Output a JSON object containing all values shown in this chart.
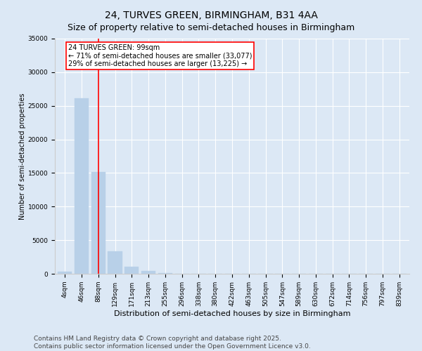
{
  "title": "24, TURVES GREEN, BIRMINGHAM, B31 4AA",
  "subtitle": "Size of property relative to semi-detached houses in Birmingham",
  "xlabel": "Distribution of semi-detached houses by size in Birmingham",
  "ylabel": "Number of semi-detached properties",
  "categories": [
    "4sqm",
    "46sqm",
    "88sqm",
    "129sqm",
    "171sqm",
    "213sqm",
    "255sqm",
    "296sqm",
    "338sqm",
    "380sqm",
    "422sqm",
    "463sqm",
    "505sqm",
    "547sqm",
    "589sqm",
    "630sqm",
    "672sqm",
    "714sqm",
    "756sqm",
    "797sqm",
    "839sqm"
  ],
  "values": [
    350,
    26100,
    15100,
    3300,
    1050,
    450,
    150,
    30,
    10,
    5,
    3,
    2,
    1,
    0,
    0,
    0,
    0,
    0,
    0,
    0,
    0
  ],
  "bar_color": "#b8d0e8",
  "bar_edge_color": "#b8d0e8",
  "vline_x_index": 2,
  "vline_color": "red",
  "annotation_title": "24 TURVES GREEN: 99sqm",
  "annotation_line1": "← 71% of semi-detached houses are smaller (33,077)",
  "annotation_line2": "29% of semi-detached houses are larger (13,225) →",
  "annotation_box_color": "white",
  "annotation_box_edge": "red",
  "ylim": [
    0,
    35000
  ],
  "yticks": [
    0,
    5000,
    10000,
    15000,
    20000,
    25000,
    30000,
    35000
  ],
  "background_color": "#dce8f5",
  "grid_color": "white",
  "footer_line1": "Contains HM Land Registry data © Crown copyright and database right 2025.",
  "footer_line2": "Contains public sector information licensed under the Open Government Licence v3.0.",
  "title_fontsize": 10,
  "xlabel_fontsize": 8,
  "ylabel_fontsize": 7,
  "tick_fontsize": 6.5,
  "footer_fontsize": 6.5,
  "annotation_fontsize": 7
}
